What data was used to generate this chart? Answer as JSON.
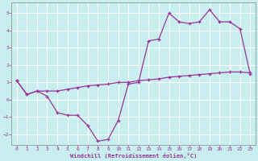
{
  "xlabel": "Windchill (Refroidissement éolien,°C)",
  "bg_color": "#c8eef0",
  "line_color": "#993399",
  "grid_color": "#ffffff",
  "xlim": [
    -0.5,
    23.5
  ],
  "ylim": [
    -2.6,
    5.6
  ],
  "xticks": [
    0,
    1,
    2,
    3,
    4,
    5,
    6,
    7,
    8,
    9,
    10,
    11,
    12,
    13,
    14,
    15,
    16,
    17,
    18,
    19,
    20,
    21,
    22,
    23
  ],
  "yticks": [
    -2,
    -1,
    0,
    1,
    2,
    3,
    4,
    5
  ],
  "line1_x": [
    0,
    1,
    2,
    3,
    4,
    5,
    6,
    7,
    8,
    9,
    10,
    11,
    12,
    13,
    14,
    15,
    16,
    17,
    18,
    19,
    20,
    21,
    22,
    23
  ],
  "line1_y": [
    1.1,
    0.3,
    0.5,
    0.2,
    -0.75,
    -0.9,
    -0.9,
    -1.5,
    -2.4,
    -2.3,
    -1.2,
    0.9,
    1.0,
    3.4,
    3.5,
    5.0,
    4.5,
    4.4,
    4.5,
    5.2,
    4.5,
    4.5,
    4.1,
    1.5
  ],
  "line2_x": [
    0,
    1,
    2,
    3,
    4,
    5,
    6,
    7,
    8,
    9,
    10,
    11,
    12,
    13,
    14,
    15,
    16,
    17,
    18,
    19,
    20,
    21,
    22,
    23
  ],
  "line2_y": [
    1.1,
    0.3,
    0.5,
    0.5,
    0.5,
    0.6,
    0.7,
    0.8,
    0.85,
    0.9,
    1.0,
    1.0,
    1.1,
    1.15,
    1.2,
    1.3,
    1.35,
    1.4,
    1.45,
    1.5,
    1.55,
    1.6,
    1.6,
    1.55
  ]
}
